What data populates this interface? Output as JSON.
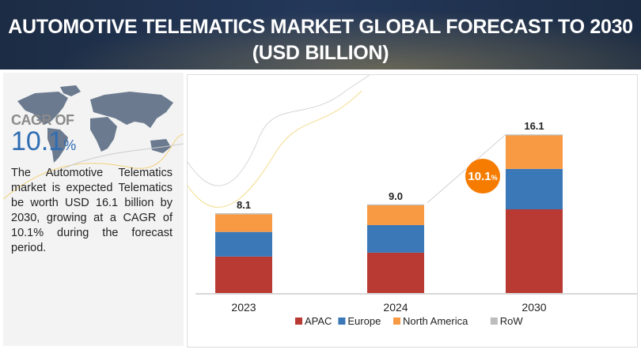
{
  "header": {
    "title_line1": "AUTOMOTIVE TELEMATICS MARKET GLOBAL FORECAST TO 2030",
    "title_line2": "(USD BILLION)"
  },
  "sidebar": {
    "cagr_label": "CAGR OF",
    "cagr_value": "10.1",
    "cagr_unit": "%",
    "description": "The Automotive Telematics market is expected Telematics be worth USD 16.1 billion by 2030, growing at a CAGR of 10.1% during the forecast period.",
    "map_icon": "world-map-icon"
  },
  "chart_data": {
    "type": "bar",
    "stacked": true,
    "categories": [
      "2023",
      "2024",
      "2030"
    ],
    "totals": [
      "8.1",
      "9.0",
      "16.1"
    ],
    "series": [
      {
        "name": "APAC",
        "color": "#b83a32",
        "values": [
          3.7,
          4.1,
          8.5
        ]
      },
      {
        "name": "Europe",
        "color": "#3a78b8",
        "values": [
          2.5,
          2.8,
          4.1
        ]
      },
      {
        "name": "North America",
        "color": "#f89a43",
        "values": [
          1.8,
          2.0,
          3.4
        ]
      },
      {
        "name": "RoW",
        "color": "#bdbdbd",
        "values": [
          0.1,
          0.1,
          0.1
        ]
      }
    ],
    "cagr_badge": {
      "value": "10.1",
      "unit": "%",
      "color": "#f57c00"
    },
    "ylim": [
      0,
      16.1
    ],
    "grid": false,
    "legend": "bottom"
  }
}
